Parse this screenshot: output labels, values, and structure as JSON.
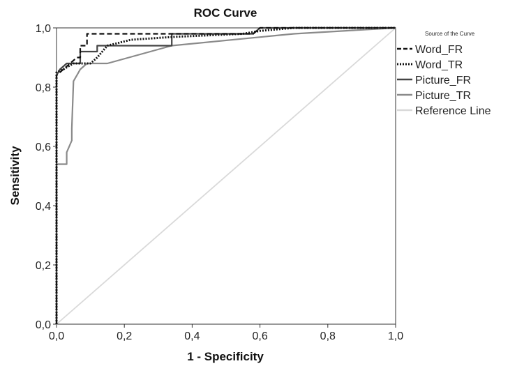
{
  "chart_data": {
    "type": "line",
    "title": "ROC Curve",
    "xlabel": "1 - Specificity",
    "ylabel": "Sensitivity",
    "xlim": [
      0,
      1
    ],
    "ylim": [
      0,
      1
    ],
    "x_ticks": [
      "0,0",
      "0,2",
      "0,4",
      "0,6",
      "0,8",
      "1,0"
    ],
    "y_ticks": [
      "0,0",
      "0,2",
      "0,4",
      "0,6",
      "0,8",
      "1,0"
    ],
    "grid": false,
    "legend": {
      "title": "Source of the Curve",
      "placement": "right"
    },
    "series": [
      {
        "name": "Word_FR",
        "color": "#111111",
        "style": "dashed",
        "points": [
          [
            0,
            0
          ],
          [
            0,
            0.84
          ],
          [
            0.02,
            0.86
          ],
          [
            0.04,
            0.88
          ],
          [
            0.06,
            0.9
          ],
          [
            0.07,
            0.9
          ],
          [
            0.07,
            0.94
          ],
          [
            0.09,
            0.94
          ],
          [
            0.09,
            0.98
          ],
          [
            0.2,
            0.98
          ],
          [
            0.58,
            0.98
          ],
          [
            0.6,
            1.0
          ],
          [
            1.0,
            1.0
          ]
        ]
      },
      {
        "name": "Word_TR",
        "color": "#111111",
        "style": "dotted",
        "points": [
          [
            0,
            0
          ],
          [
            0,
            0.85
          ],
          [
            0.02,
            0.86
          ],
          [
            0.05,
            0.88
          ],
          [
            0.08,
            0.88
          ],
          [
            0.1,
            0.88
          ],
          [
            0.12,
            0.9
          ],
          [
            0.15,
            0.94
          ],
          [
            0.22,
            0.96
          ],
          [
            0.35,
            0.97
          ],
          [
            0.55,
            0.98
          ],
          [
            0.6,
            0.99
          ],
          [
            0.7,
            1.0
          ],
          [
            1.0,
            1.0
          ]
        ]
      },
      {
        "name": "Picture_FR",
        "color": "#444444",
        "style": "solid",
        "points": [
          [
            0,
            0
          ],
          [
            0,
            0.84
          ],
          [
            0.01,
            0.86
          ],
          [
            0.03,
            0.88
          ],
          [
            0.07,
            0.88
          ],
          [
            0.07,
            0.92
          ],
          [
            0.12,
            0.92
          ],
          [
            0.12,
            0.94
          ],
          [
            0.34,
            0.94
          ],
          [
            0.34,
            0.98
          ],
          [
            0.58,
            0.98
          ],
          [
            0.6,
            1.0
          ],
          [
            1.0,
            1.0
          ]
        ]
      },
      {
        "name": "Picture_TR",
        "color": "#8a8a8a",
        "style": "solid",
        "points": [
          [
            0,
            0
          ],
          [
            0,
            0.54
          ],
          [
            0.03,
            0.54
          ],
          [
            0.03,
            0.58
          ],
          [
            0.045,
            0.62
          ],
          [
            0.045,
            0.66
          ],
          [
            0.05,
            0.82
          ],
          [
            0.06,
            0.84
          ],
          [
            0.07,
            0.86
          ],
          [
            0.09,
            0.88
          ],
          [
            0.15,
            0.88
          ],
          [
            0.34,
            0.94
          ],
          [
            0.7,
            0.98
          ],
          [
            1.0,
            1.0
          ]
        ]
      },
      {
        "name": "Reference Line",
        "color": "#d9d9d9",
        "style": "solid",
        "points": [
          [
            0,
            0
          ],
          [
            1,
            1
          ]
        ]
      }
    ]
  }
}
